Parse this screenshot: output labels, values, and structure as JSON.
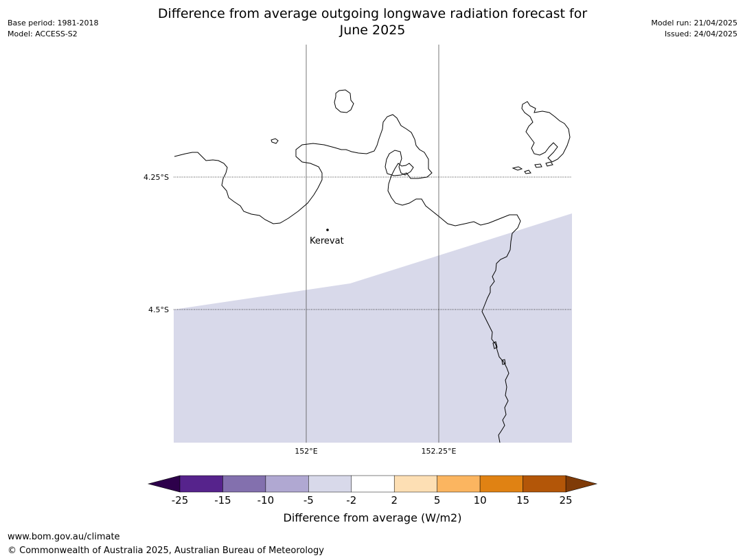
{
  "header": {
    "title_line1": "Difference from average outgoing longwave radiation forecast for",
    "title_line2": "June 2025",
    "base_period": "Base period: 1981-2018",
    "model": "Model: ACCESS-S2",
    "model_run": "Model run: 21/04/2025",
    "issued": "Issued: 24/04/2025"
  },
  "map": {
    "lat_labels": [
      "4.25°S",
      "4.5°S"
    ],
    "lon_labels": [
      "152°E",
      "152.25°E"
    ],
    "place": {
      "name": "Kerevat"
    },
    "fill_category": "-5 to -2",
    "fill_color": "#d8d9ea"
  },
  "colorbar": {
    "title": "Difference from average (W/m2)",
    "ticks": [
      "-25",
      "-15",
      "-10",
      "-5",
      "-2",
      "2",
      "5",
      "10",
      "15",
      "25"
    ],
    "bins": [
      {
        "label": "-25 to -15",
        "color": "#56238c"
      },
      {
        "label": "-15 to -10",
        "color": "#8370ae"
      },
      {
        "label": "-10 to -5",
        "color": "#b0a8d2"
      },
      {
        "label": "-5 to -2",
        "color": "#d8d9ea"
      },
      {
        "label": "-2 to 2",
        "color": "#ffffff"
      },
      {
        "label": "2 to 5",
        "color": "#fddfb4"
      },
      {
        "label": "5 to 10",
        "color": "#fbb560"
      },
      {
        "label": "10 to 15",
        "color": "#e08213"
      },
      {
        "label": "15 to 25",
        "color": "#b35608"
      }
    ],
    "under_color": "#2d004b",
    "over_color": "#7f3b08"
  },
  "footer": {
    "url": "www.bom.gov.au/climate",
    "copyright": "© Commonwealth of Australia 2025, Australian Bureau of Meteorology"
  }
}
